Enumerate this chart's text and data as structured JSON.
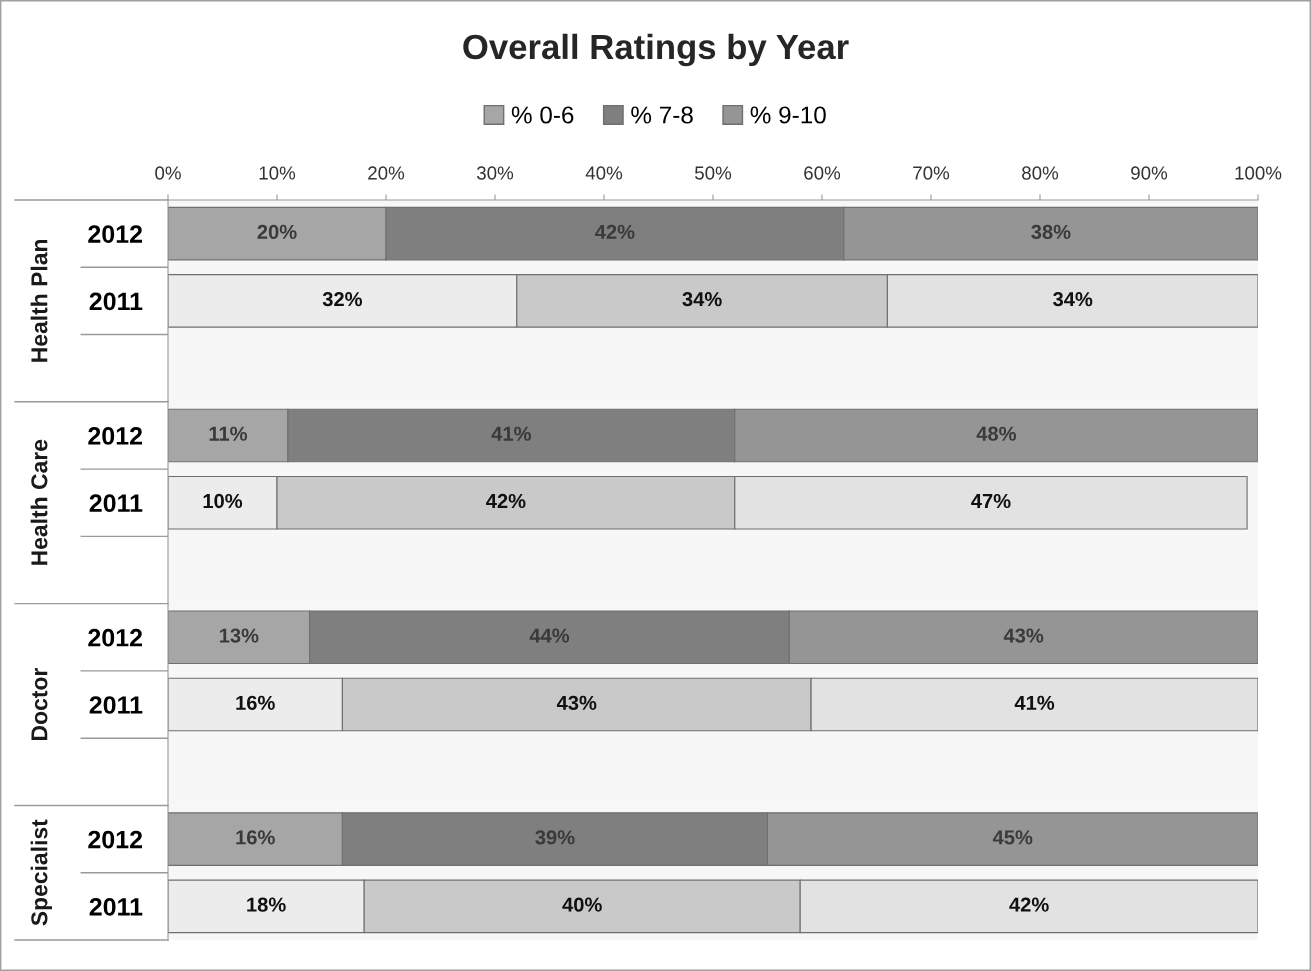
{
  "chart_data": [
    {
      "type": "bar",
      "orientation": "horizontal",
      "stacked": true,
      "title": "Overall Ratings by Year",
      "ylabel": "Health Plan",
      "categories": [
        "2012",
        "2011",
        null
      ],
      "series": [
        {
          "name": "% 0-6",
          "color": "#a6a6a6",
          "colors": [
            "#a6a6a6",
            "#ececec",
            null
          ],
          "values": [
            20,
            32,
            null
          ],
          "value_labels": [
            "20%",
            "32%",
            null
          ]
        },
        {
          "name": "% 7-8",
          "color": "#7f7f7f",
          "colors": [
            "#7f7f7f",
            "#c9c9c9",
            null
          ],
          "values": [
            42,
            34,
            null
          ],
          "value_labels": [
            "42%",
            "34%",
            null
          ]
        },
        {
          "name": "% 9-10",
          "color": "#959595",
          "colors": [
            "#959595",
            "#e2e2e2",
            null
          ],
          "values": [
            38,
            34,
            null
          ],
          "value_labels": [
            "38%",
            "34%",
            null
          ]
        }
      ],
      "xlim": [
        0,
        100
      ],
      "xticks": [
        {
          "value": 0,
          "label": "0%"
        },
        {
          "value": 10,
          "label": "10%"
        },
        {
          "value": 20,
          "label": "20%"
        },
        {
          "value": 30,
          "label": "30%"
        },
        {
          "value": 40,
          "label": "40%"
        },
        {
          "value": 50,
          "label": "50%"
        },
        {
          "value": 60,
          "label": "60%"
        },
        {
          "value": 70,
          "label": "70%"
        },
        {
          "value": 80,
          "label": "80%"
        },
        {
          "value": 90,
          "label": "90%"
        },
        {
          "value": 100,
          "label": "100%"
        }
      ],
      "legend": "top"
    },
    {
      "type": "bar",
      "orientation": "horizontal",
      "stacked": true,
      "ylabel": "Health Care",
      "categories": [
        "2012",
        "2011",
        null
      ],
      "series": [
        {
          "colors": [
            "#a6a6a6",
            "#ececec",
            null
          ],
          "values": [
            11,
            10,
            null
          ],
          "value_labels": [
            "11%",
            "10%",
            null
          ]
        },
        {
          "colors": [
            "#7f7f7f",
            "#c9c9c9",
            null
          ],
          "values": [
            41,
            42,
            null
          ],
          "value_labels": [
            "41%",
            "42%",
            null
          ]
        },
        {
          "colors": [
            "#959595",
            "#e2e2e2",
            null
          ],
          "values": [
            48,
            47,
            null
          ],
          "value_labels": [
            "48%",
            "47%",
            null
          ]
        }
      ],
      "xlim": [
        0,
        100
      ],
      "tick_labels": "y"
    },
    {
      "type": "bar",
      "orientation": "horizontal",
      "stacked": true,
      "ylabel": "Doctor",
      "categories": [
        "2012",
        "2011",
        null
      ],
      "series": [
        {
          "colors": [
            "#a6a6a6",
            "#ececec",
            null
          ],
          "values": [
            13,
            16,
            null
          ],
          "value_labels": [
            "13%",
            "16%",
            null
          ]
        },
        {
          "colors": [
            "#7f7f7f",
            "#c9c9c9",
            null
          ],
          "values": [
            44,
            43,
            null
          ],
          "value_labels": [
            "44%",
            "43%",
            null
          ]
        },
        {
          "colors": [
            "#959595",
            "#e2e2e2",
            null
          ],
          "values": [
            43,
            41,
            null
          ],
          "value_labels": [
            "43%",
            "41%",
            null
          ]
        }
      ],
      "xlim": [
        0,
        100
      ],
      "tick_labels": "y"
    },
    {
      "type": "bar",
      "orientation": "horizontal",
      "stacked": true,
      "ylabel": "Specialist",
      "categories": [
        "2012",
        "2011"
      ],
      "series": [
        {
          "colors": [
            "#a6a6a6",
            "#ececec"
          ],
          "values": [
            16,
            18
          ],
          "value_labels": [
            "16%",
            "18%"
          ]
        },
        {
          "colors": [
            "#7f7f7f",
            "#c9c9c9"
          ],
          "values": [
            39,
            40
          ],
          "value_labels": [
            "39%",
            "40%"
          ]
        },
        {
          "colors": [
            "#959595",
            "#e2e2e2"
          ],
          "values": [
            45,
            42
          ],
          "value_labels": [
            "45%",
            "42%"
          ]
        }
      ],
      "xlim": [
        0,
        100
      ],
      "tick_labels": "y"
    }
  ]
}
